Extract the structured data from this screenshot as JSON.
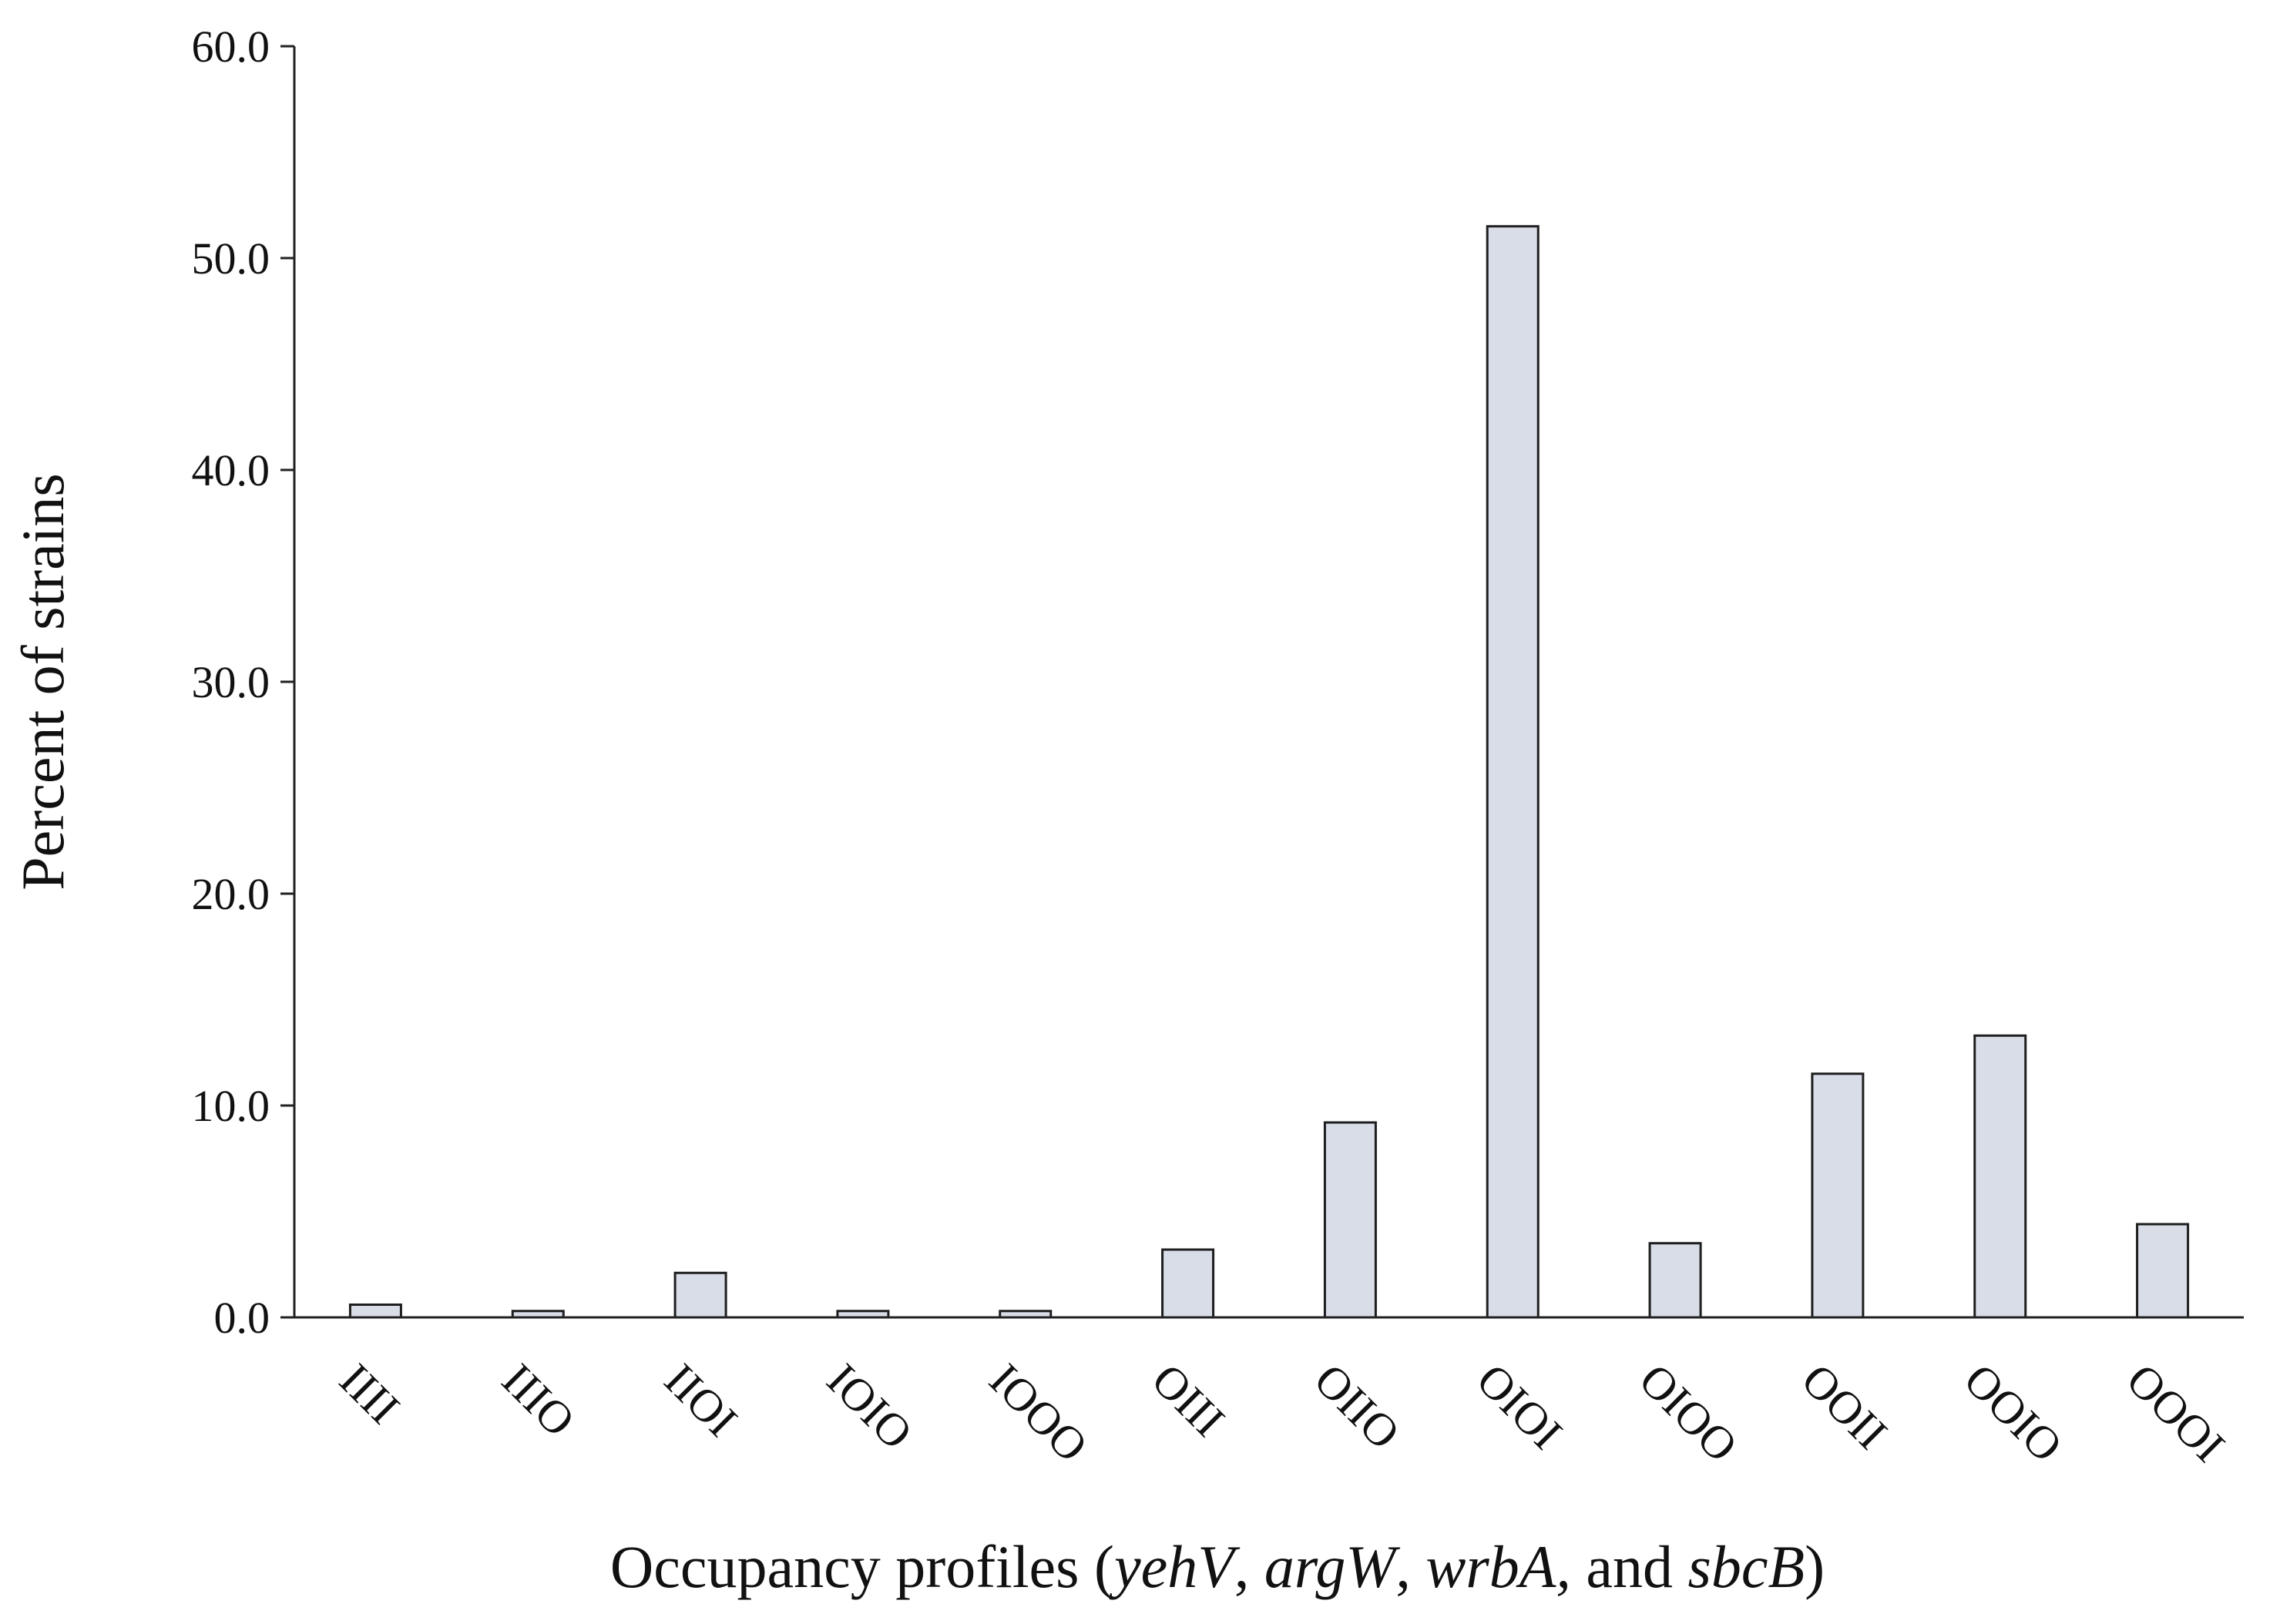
{
  "chart_data": {
    "type": "bar",
    "categories": [
      "IIII",
      "IIIO",
      "IIOI",
      "IOIO",
      "IOOO",
      "OIII",
      "OIIO",
      "OIOI",
      "OIOO",
      "OOII",
      "OOIO",
      "OOOI"
    ],
    "values": [
      0.6,
      0.3,
      2.1,
      0.3,
      0.3,
      3.2,
      9.2,
      51.5,
      3.5,
      11.5,
      13.3,
      4.4
    ],
    "ylim": [
      0,
      60
    ],
    "yticks": [
      "0.0",
      "10.0",
      "20.0",
      "30.0",
      "40.0",
      "50.0",
      "60.0"
    ],
    "ylabel": "Percent of strains",
    "xlabel": {
      "prefix": "Occupancy profiles (",
      "gene1": "yehV",
      "sep1": ", ",
      "gene2": "argW",
      "sep2": ", ",
      "gene3": "wrbA,",
      "sep3": " and ",
      "gene4": "sbcB",
      "suffix": ")"
    },
    "grid": false,
    "legend": "none",
    "colors": {
      "bar_fill": "#d8dde8",
      "bar_edge": "#1e1e1e",
      "axis": "#222222"
    }
  }
}
